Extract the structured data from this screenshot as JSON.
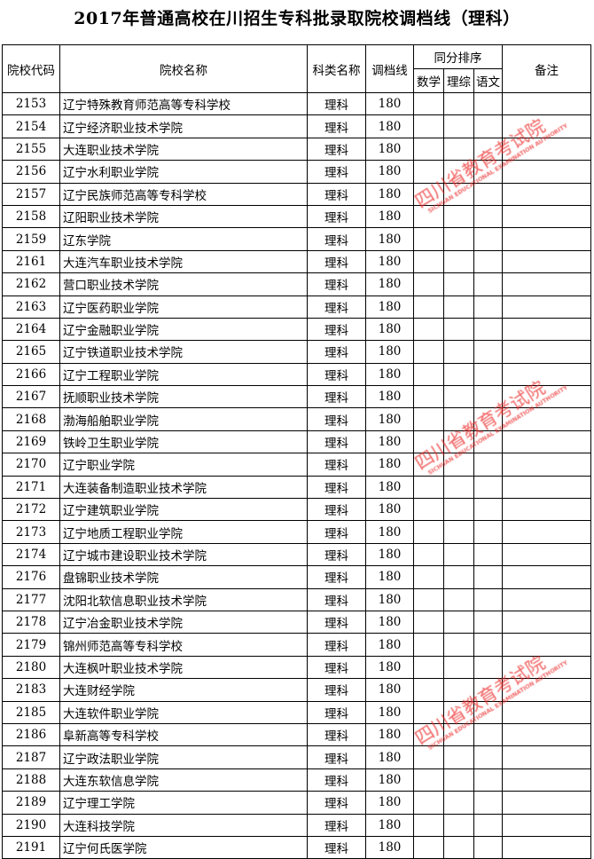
{
  "title": "2017年普通高校在川招生专科批录取院校调档线（理科）",
  "headers": {
    "code": "院校代码",
    "name": "院校名称",
    "category": "科类名称",
    "line": "调档线",
    "tie_break": "同分排序",
    "math": "数学",
    "lizong": "理综",
    "chinese": "语文",
    "remarks": "备注"
  },
  "watermark": {
    "cn": "四川省教育考试院",
    "en": "SICHUAN EDUCATIONAL EXAMINATION AUTHORITY",
    "color": "#eb2828"
  },
  "rows": [
    {
      "code": "2153",
      "name": "辽宁特殊教育师范高等专科学校",
      "category": "理科",
      "line": "180"
    },
    {
      "code": "2154",
      "name": "辽宁经济职业技术学院",
      "category": "理科",
      "line": "180"
    },
    {
      "code": "2155",
      "name": "大连职业技术学院",
      "category": "理科",
      "line": "180"
    },
    {
      "code": "2156",
      "name": "辽宁水利职业学院",
      "category": "理科",
      "line": "180"
    },
    {
      "code": "2157",
      "name": "辽宁民族师范高等专科学校",
      "category": "理科",
      "line": "180"
    },
    {
      "code": "2158",
      "name": "辽阳职业技术学院",
      "category": "理科",
      "line": "180"
    },
    {
      "code": "2159",
      "name": "辽东学院",
      "category": "理科",
      "line": "180"
    },
    {
      "code": "2161",
      "name": "大连汽车职业技术学院",
      "category": "理科",
      "line": "180"
    },
    {
      "code": "2162",
      "name": "营口职业技术学院",
      "category": "理科",
      "line": "180"
    },
    {
      "code": "2163",
      "name": "辽宁医药职业学院",
      "category": "理科",
      "line": "180"
    },
    {
      "code": "2164",
      "name": "辽宁金融职业学院",
      "category": "理科",
      "line": "180"
    },
    {
      "code": "2165",
      "name": "辽宁铁道职业技术学院",
      "category": "理科",
      "line": "180"
    },
    {
      "code": "2166",
      "name": "辽宁工程职业学院",
      "category": "理科",
      "line": "180"
    },
    {
      "code": "2167",
      "name": "抚顺职业技术学院",
      "category": "理科",
      "line": "180"
    },
    {
      "code": "2168",
      "name": "渤海船舶职业学院",
      "category": "理科",
      "line": "180"
    },
    {
      "code": "2169",
      "name": "铁岭卫生职业学院",
      "category": "理科",
      "line": "180"
    },
    {
      "code": "2170",
      "name": "辽宁职业学院",
      "category": "理科",
      "line": "180"
    },
    {
      "code": "2171",
      "name": "大连装备制造职业技术学院",
      "category": "理科",
      "line": "180"
    },
    {
      "code": "2172",
      "name": "辽宁建筑职业学院",
      "category": "理科",
      "line": "180"
    },
    {
      "code": "2173",
      "name": "辽宁地质工程职业学院",
      "category": "理科",
      "line": "180"
    },
    {
      "code": "2174",
      "name": "辽宁城市建设职业技术学院",
      "category": "理科",
      "line": "180"
    },
    {
      "code": "2176",
      "name": "盘锦职业技术学院",
      "category": "理科",
      "line": "180"
    },
    {
      "code": "2177",
      "name": "沈阳北软信息职业技术学院",
      "category": "理科",
      "line": "180"
    },
    {
      "code": "2178",
      "name": "辽宁冶金职业技术学院",
      "category": "理科",
      "line": "180"
    },
    {
      "code": "2179",
      "name": "锦州师范高等专科学校",
      "category": "理科",
      "line": "180"
    },
    {
      "code": "2180",
      "name": "大连枫叶职业技术学院",
      "category": "理科",
      "line": "180"
    },
    {
      "code": "2183",
      "name": "大连财经学院",
      "category": "理科",
      "line": "180"
    },
    {
      "code": "2185",
      "name": "大连软件职业学院",
      "category": "理科",
      "line": "180"
    },
    {
      "code": "2186",
      "name": "阜新高等专科学校",
      "category": "理科",
      "line": "180"
    },
    {
      "code": "2187",
      "name": "辽宁政法职业学院",
      "category": "理科",
      "line": "180"
    },
    {
      "code": "2188",
      "name": "大连东软信息学院",
      "category": "理科",
      "line": "180"
    },
    {
      "code": "2189",
      "name": "辽宁理工学院",
      "category": "理科",
      "line": "180"
    },
    {
      "code": "2190",
      "name": "大连科技学院",
      "category": "理科",
      "line": "180"
    },
    {
      "code": "2191",
      "name": "辽宁何氏医学院",
      "category": "理科",
      "line": "180"
    }
  ]
}
